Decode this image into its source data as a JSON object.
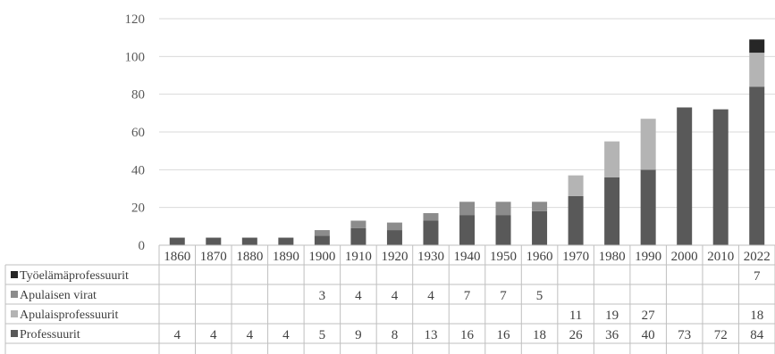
{
  "chart_data": {
    "type": "bar",
    "stacked": true,
    "categories": [
      "1860",
      "1870",
      "1880",
      "1890",
      "1900",
      "1910",
      "1920",
      "1930",
      "1940",
      "1950",
      "1960",
      "1970",
      "1980",
      "1990",
      "2000",
      "2010",
      "2022"
    ],
    "ylim": [
      0,
      120
    ],
    "yticks": [
      0,
      20,
      40,
      60,
      80,
      100,
      120
    ],
    "grid": true,
    "legend": "data-table-left",
    "series": [
      {
        "name": "Professuurit",
        "color": "#595959",
        "values": [
          4,
          4,
          4,
          4,
          5,
          9,
          8,
          13,
          16,
          16,
          18,
          26,
          36,
          40,
          73,
          72,
          84
        ]
      },
      {
        "name": "Apulaisprofessuurit",
        "color": "#b4b4b4",
        "values": [
          null,
          null,
          null,
          null,
          null,
          null,
          null,
          null,
          null,
          null,
          null,
          11,
          19,
          27,
          null,
          null,
          18
        ]
      },
      {
        "name": "Apulaisen virat",
        "color": "#8c8c8c",
        "values": [
          null,
          null,
          null,
          null,
          3,
          4,
          4,
          4,
          7,
          7,
          5,
          null,
          null,
          null,
          null,
          null,
          null
        ]
      },
      {
        "name": "Työelämäprofessuurit",
        "color": "#262626",
        "values": [
          null,
          null,
          null,
          null,
          null,
          null,
          null,
          null,
          null,
          null,
          null,
          null,
          null,
          null,
          null,
          null,
          7
        ]
      }
    ]
  }
}
